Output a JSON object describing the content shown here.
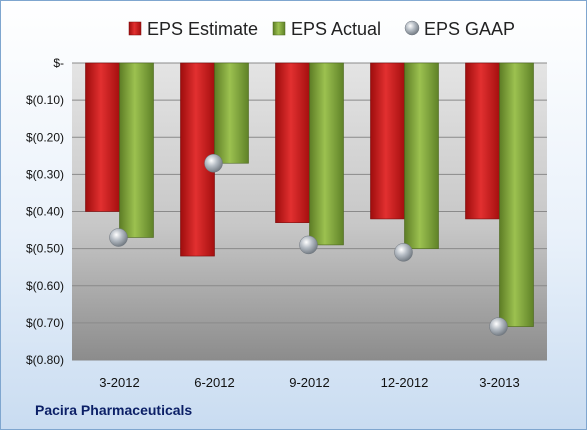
{
  "chart_data": {
    "type": "bar",
    "categories": [
      "3-2012",
      "6-2012",
      "9-2012",
      "12-2012",
      "3-2013"
    ],
    "series": [
      {
        "name": "EPS Estimate",
        "values": [
          -0.4,
          -0.52,
          -0.43,
          -0.42,
          -0.42
        ],
        "color": "#cc1b1b"
      },
      {
        "name": "EPS Actual",
        "values": [
          -0.47,
          -0.27,
          -0.49,
          -0.5,
          -0.71
        ],
        "color": "#7ea33a"
      },
      {
        "name": "EPS GAAP",
        "values": [
          -0.47,
          -0.27,
          -0.49,
          -0.51,
          -0.71
        ],
        "color": "#b9c2cc",
        "marker": "sphere"
      }
    ],
    "yticks": [
      "$-",
      "$(0.10)",
      "$(0.20)",
      "$(0.30)",
      "$(0.40)",
      "$(0.50)",
      "$(0.60)",
      "$(0.70)",
      "$(0.80)"
    ],
    "ylim": [
      -0.8,
      0
    ],
    "grid": true,
    "legend": "top"
  },
  "company": "Pacira Pharmaceuticals"
}
